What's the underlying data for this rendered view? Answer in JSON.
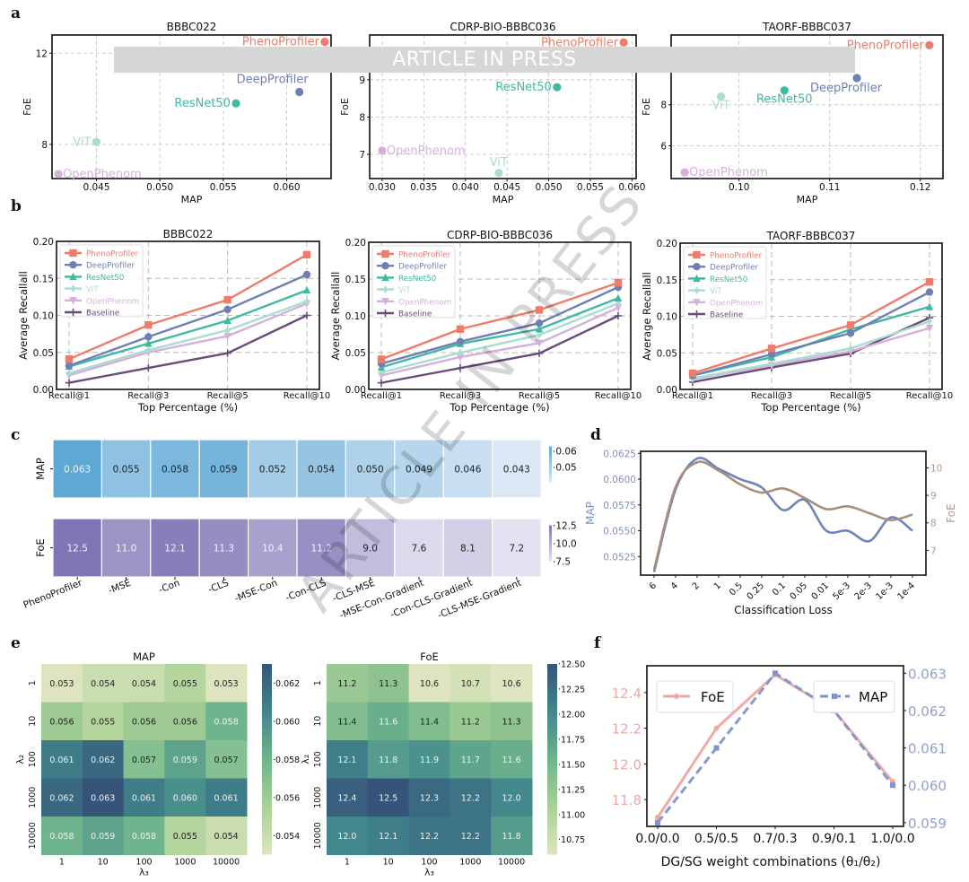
{
  "watermark": {
    "banner_text": "ARTICLE IN PRESS",
    "diagonal_text": "ARTICLE IN PRESS"
  },
  "panel_labels": [
    "a",
    "b",
    "c",
    "d",
    "e",
    "f"
  ],
  "chart_data": [
    {
      "id": "a1",
      "type": "scatter",
      "title": "BBBC022",
      "xlabel": "MAP",
      "ylabel": "FoE",
      "xlim": [
        0.0415,
        0.0635
      ],
      "ylim": [
        6.5,
        12.8
      ],
      "xticks": [
        0.045,
        0.05,
        0.055,
        0.06
      ],
      "xtick_labels": [
        "0.045",
        "0.050",
        "0.055",
        "0.060"
      ],
      "yticks": [
        8,
        12
      ],
      "ytick_labels": [
        "8",
        "12"
      ],
      "points": [
        {
          "name": "PhenoProfiler",
          "x": 0.063,
          "y": 12.5,
          "color": "#f07b6b"
        },
        {
          "name": "DeepProfiler",
          "x": 0.061,
          "y": 10.3,
          "color": "#6e7fb5"
        },
        {
          "name": "ResNet50",
          "x": 0.056,
          "y": 9.8,
          "color": "#3fb9a0"
        },
        {
          "name": "ViT",
          "x": 0.045,
          "y": 8.1,
          "color": "#a8ddd0"
        },
        {
          "name": "OpenPhenom",
          "x": 0.042,
          "y": 6.7,
          "color": "#d6b0db"
        }
      ]
    },
    {
      "id": "a2",
      "type": "scatter",
      "title": "CDRP-BIO-BBBC036",
      "xlabel": "MAP",
      "ylabel": "FoE",
      "xlim": [
        0.0285,
        0.0605
      ],
      "ylim": [
        6.35,
        10.2
      ],
      "xticks": [
        0.03,
        0.035,
        0.04,
        0.045,
        0.05,
        0.055,
        0.06
      ],
      "xtick_labels": [
        "0.030",
        "0.035",
        "0.040",
        "0.045",
        "0.050",
        "0.055",
        "0.060"
      ],
      "yticks": [
        7,
        8,
        9
      ],
      "ytick_labels": [
        "7",
        "8",
        "9"
      ],
      "points": [
        {
          "name": "PhenoProfiler",
          "x": 0.059,
          "y": 10.0,
          "color": "#f07b6b"
        },
        {
          "name": "DeepProfiler",
          "x": 0.055,
          "y": 9.7,
          "color": "#6e7fb5"
        },
        {
          "name": "ResNet50",
          "x": 0.051,
          "y": 8.8,
          "color": "#3fb9a0"
        },
        {
          "name": "ViT",
          "x": 0.044,
          "y": 6.5,
          "color": "#a8ddd0"
        },
        {
          "name": "OpenPhenom",
          "x": 0.03,
          "y": 7.1,
          "color": "#d6b0db"
        }
      ]
    },
    {
      "id": "a3",
      "type": "scatter",
      "title": "TAORF-BBBC037",
      "xlabel": "MAP",
      "ylabel": "FoE",
      "xlim": [
        0.0925,
        0.1225
      ],
      "ylim": [
        4.4,
        11.4
      ],
      "xticks": [
        0.1,
        0.11,
        0.12
      ],
      "xtick_labels": [
        "0.10",
        "0.11",
        "0.12"
      ],
      "yticks": [
        6,
        8
      ],
      "ytick_labels": [
        "6",
        "8"
      ],
      "points": [
        {
          "name": "PhenoProfiler",
          "x": 0.121,
          "y": 10.9,
          "color": "#f07b6b"
        },
        {
          "name": "DeepProfiler",
          "x": 0.113,
          "y": 9.3,
          "color": "#6e7fb5"
        },
        {
          "name": "ResNet50",
          "x": 0.105,
          "y": 8.7,
          "color": "#3fb9a0"
        },
        {
          "name": "ViT",
          "x": 0.098,
          "y": 8.4,
          "color": "#a8ddd0"
        },
        {
          "name": "OpenPhenom",
          "x": 0.094,
          "y": 4.7,
          "color": "#d6b0db"
        }
      ]
    },
    {
      "id": "b1",
      "type": "line",
      "title": "BBBC022",
      "xlabel": "Top Percentage (%)",
      "ylabel": "Average Recallall",
      "categories": [
        "Recall@1",
        "Recall@3",
        "Recall@5",
        "Recall@10"
      ],
      "ylim": [
        0,
        0.2
      ],
      "yticks": [
        0,
        0.05,
        0.1,
        0.15,
        0.2
      ],
      "ytick_labels": [
        "0.00",
        "0.05",
        "0.10",
        "0.15",
        "0.20"
      ],
      "legend": "top-left",
      "series": [
        {
          "name": "PhenoProfiler",
          "marker": "square",
          "color": "#f07b6b",
          "values": [
            0.041,
            0.087,
            0.121,
            0.182
          ]
        },
        {
          "name": "DeepProfiler",
          "marker": "circle",
          "color": "#6e7fb5",
          "values": [
            0.032,
            0.071,
            0.108,
            0.155
          ]
        },
        {
          "name": "ResNet50",
          "marker": "triangle",
          "color": "#3fb9a0",
          "values": [
            0.031,
            0.062,
            0.093,
            0.134
          ]
        },
        {
          "name": "ViT",
          "marker": "diamond",
          "color": "#a8ddd0",
          "values": [
            0.022,
            0.053,
            0.08,
            0.119
          ]
        },
        {
          "name": "OpenPhenom",
          "marker": "triangle-down",
          "color": "#d6b0db",
          "values": [
            0.019,
            0.05,
            0.072,
            0.116
          ]
        },
        {
          "name": "Baseline",
          "marker": "plus",
          "color": "#6a4c7a",
          "values": [
            0.009,
            0.029,
            0.049,
            0.1
          ]
        }
      ]
    },
    {
      "id": "b2",
      "type": "line",
      "title": "CDRP-BIO-BBBC036",
      "xlabel": "Top Percentage (%)",
      "ylabel": "Average Recallall",
      "categories": [
        "Recall@1",
        "Recall@3",
        "Recall@5",
        "Recall@10"
      ],
      "ylim": [
        0,
        0.2
      ],
      "yticks": [
        0,
        0.05,
        0.1,
        0.15,
        0.2
      ],
      "ytick_labels": [
        "0.00",
        "0.05",
        "0.10",
        "0.15",
        "0.20"
      ],
      "legend": "top-left",
      "series": [
        {
          "name": "PhenoProfiler",
          "marker": "square",
          "color": "#f07b6b",
          "values": [
            0.041,
            0.082,
            0.108,
            0.145
          ]
        },
        {
          "name": "DeepProfiler",
          "marker": "circle",
          "color": "#6e7fb5",
          "values": [
            0.035,
            0.065,
            0.09,
            0.139
          ]
        },
        {
          "name": "ResNet50",
          "marker": "triangle",
          "color": "#3fb9a0",
          "values": [
            0.03,
            0.062,
            0.082,
            0.124
          ]
        },
        {
          "name": "ViT",
          "marker": "diamond",
          "color": "#a8ddd0",
          "values": [
            0.023,
            0.05,
            0.074,
            0.117
          ]
        },
        {
          "name": "OpenPhenom",
          "marker": "triangle-down",
          "color": "#d6b0db",
          "values": [
            0.019,
            0.044,
            0.063,
            0.111
          ]
        },
        {
          "name": "Baseline",
          "marker": "plus",
          "color": "#6a4c7a",
          "values": [
            0.009,
            0.029,
            0.049,
            0.1
          ]
        }
      ]
    },
    {
      "id": "b3",
      "type": "line",
      "title": "TAORF-BBBC037",
      "xlabel": "Top Percentage (%)",
      "ylabel": "Average Recallall",
      "categories": [
        "Recall@1",
        "Recall@3",
        "Recall@5",
        "Recall@10"
      ],
      "ylim": [
        0,
        0.2
      ],
      "yticks": [
        0,
        0.05,
        0.1,
        0.15,
        0.2
      ],
      "ytick_labels": [
        "0.00",
        "0.05",
        "0.10",
        "0.15",
        "0.20"
      ],
      "legend": "top-left",
      "series": [
        {
          "name": "PhenoProfiler",
          "marker": "square",
          "color": "#f07b6b",
          "values": [
            0.022,
            0.056,
            0.088,
            0.147
          ]
        },
        {
          "name": "DeepProfiler",
          "marker": "circle",
          "color": "#6e7fb5",
          "values": [
            0.019,
            0.048,
            0.077,
            0.133
          ]
        },
        {
          "name": "ResNet50",
          "marker": "triangle",
          "color": "#3fb9a0",
          "values": [
            0.019,
            0.044,
            0.082,
            0.113
          ]
        },
        {
          "name": "ViT",
          "marker": "diamond",
          "color": "#a8ddd0",
          "values": [
            0.015,
            0.035,
            0.056,
            0.093
          ]
        },
        {
          "name": "OpenPhenom",
          "marker": "triangle-down",
          "color": "#d6b0db",
          "values": [
            0.014,
            0.033,
            0.052,
            0.084
          ]
        },
        {
          "name": "Baseline",
          "marker": "plus",
          "color": "#6a4c7a",
          "values": [
            0.01,
            0.03,
            0.049,
            0.098
          ]
        }
      ]
    },
    {
      "id": "c",
      "type": "heatmap",
      "categories": [
        "PhenoProfiler",
        "-MSE",
        "-Con",
        "-CLS",
        "-MSE-Con",
        "-Con-CLS",
        "-CLS-MSE",
        "-MSE-Con-Gradient",
        "-Con-CLS-Gradient",
        "-CLS-MSE-Gradient"
      ],
      "rows": [
        {
          "name": "MAP",
          "values": [
            0.063,
            0.055,
            0.058,
            0.059,
            0.052,
            0.054,
            0.05,
            0.049,
            0.046,
            0.043
          ],
          "labels": [
            "0.063",
            "0.055",
            "0.058",
            "0.059",
            "0.052",
            "0.054",
            "0.050",
            "0.049",
            "0.046",
            "0.043"
          ],
          "colorbar_ticks": [
            "0.06",
            "0.05"
          ],
          "range": [
            0.043,
            0.063
          ],
          "cmap": [
            "#dbe9f6",
            "#5da8d4"
          ]
        },
        {
          "name": "FoE",
          "values": [
            12.5,
            11.0,
            12.1,
            11.3,
            10.4,
            11.2,
            9.0,
            7.6,
            8.1,
            7.2
          ],
          "labels": [
            "12.5",
            "11.0",
            "12.1",
            "11.3",
            "10.4",
            "11.2",
            "9.0",
            "7.6",
            "8.1",
            "7.2"
          ],
          "colorbar_ticks": [
            "12.5",
            "10.0",
            "7.5"
          ],
          "range": [
            7.2,
            12.5
          ],
          "cmap": [
            "#e3e2f0",
            "#7f76b6"
          ]
        }
      ]
    },
    {
      "id": "d",
      "type": "line",
      "xlabel": "Classification Loss",
      "ylabel_left": "MAP",
      "ylabel_right": "FoE",
      "categories": [
        "6",
        "4",
        "2",
        "1",
        "0.5",
        "0.25",
        "0.1",
        "0.05",
        "0.01",
        "5e-3",
        "2e-3",
        "1e-3",
        "1e-4"
      ],
      "ylim_left": [
        0.0507,
        0.0627
      ],
      "ylim_right": [
        6.1,
        10.6
      ],
      "yticks_left": [
        "0.0525",
        "0.0550",
        "0.0575",
        "0.0600",
        "0.0625"
      ],
      "yticks_right": [
        "7",
        "8",
        "9",
        "10"
      ],
      "series": [
        {
          "name": "MAP",
          "axis": "left",
          "color": "#6e84bd",
          "values": [
            0.051,
            0.059,
            0.062,
            0.061,
            0.06,
            0.0592,
            0.057,
            0.058,
            0.055,
            0.055,
            0.054,
            0.0563,
            0.055
          ]
        },
        {
          "name": "FoE",
          "axis": "right",
          "color": "#a88e7c",
          "values": [
            6.3,
            9.3,
            10.2,
            9.9,
            9.4,
            9.1,
            9.25,
            8.9,
            8.5,
            8.6,
            8.35,
            8.1,
            8.3
          ]
        }
      ]
    },
    {
      "id": "e1",
      "type": "heatmap",
      "title": "MAP",
      "xlabel": "λ₃",
      "ylabel": "λ₂",
      "x": [
        "1",
        "10",
        "100",
        "1000",
        "10000"
      ],
      "y": [
        "1",
        "10",
        "100",
        "1000",
        "10000"
      ],
      "values": [
        [
          0.053,
          0.054,
          0.054,
          0.055,
          0.053
        ],
        [
          0.056,
          0.055,
          0.056,
          0.056,
          0.058
        ],
        [
          0.061,
          0.062,
          0.057,
          0.059,
          0.057
        ],
        [
          0.062,
          0.063,
          0.061,
          0.06,
          0.061
        ],
        [
          0.058,
          0.059,
          0.058,
          0.055,
          0.054
        ]
      ],
      "labels": [
        [
          "0.053",
          "0.054",
          "0.054",
          "0.055",
          "0.053"
        ],
        [
          "0.056",
          "0.055",
          "0.056",
          "0.056",
          "0.058"
        ],
        [
          "0.061",
          "0.062",
          "0.057",
          "0.059",
          "0.057"
        ],
        [
          "0.062",
          "0.063",
          "0.061",
          "0.060",
          "0.061"
        ],
        [
          "0.058",
          "0.059",
          "0.058",
          "0.055",
          "0.054"
        ]
      ],
      "range": [
        0.053,
        0.063
      ],
      "colorbar_ticks": [
        "0.062",
        "0.060",
        "0.058",
        "0.056",
        "0.054"
      ],
      "colorbar_values": [
        0.062,
        0.06,
        0.058,
        0.056,
        0.054
      ]
    },
    {
      "id": "e2",
      "type": "heatmap",
      "title": "FoE",
      "xlabel": "λ₃",
      "ylabel": "λ₂",
      "x": [
        "1",
        "10",
        "100",
        "1000",
        "10000"
      ],
      "y": [
        "1",
        "10",
        "100",
        "1000",
        "10000"
      ],
      "values": [
        [
          11.2,
          11.3,
          10.6,
          10.7,
          10.6
        ],
        [
          11.4,
          11.6,
          11.4,
          11.2,
          11.3
        ],
        [
          12.1,
          11.8,
          11.9,
          11.7,
          11.6
        ],
        [
          12.4,
          12.5,
          12.3,
          12.2,
          12.0
        ],
        [
          12.0,
          12.1,
          12.2,
          12.2,
          11.8
        ]
      ],
      "labels": [
        [
          "11.2",
          "11.3",
          "10.6",
          "10.7",
          "10.6"
        ],
        [
          "11.4",
          "11.6",
          "11.4",
          "11.2",
          "11.3"
        ],
        [
          "12.1",
          "11.8",
          "11.9",
          "11.7",
          "11.6"
        ],
        [
          "12.4",
          "12.5",
          "12.3",
          "12.2",
          "12.0"
        ],
        [
          "12.0",
          "12.1",
          "12.2",
          "12.2",
          "11.8"
        ]
      ],
      "range": [
        10.6,
        12.5
      ],
      "colorbar_ticks": [
        "12.50",
        "12.25",
        "12.00",
        "11.75",
        "11.50",
        "11.25",
        "11.00",
        "10.75"
      ],
      "colorbar_values": [
        12.5,
        12.25,
        12.0,
        11.75,
        11.5,
        11.25,
        11.0,
        10.75
      ]
    },
    {
      "id": "f",
      "type": "line",
      "xlabel": "DG/SG weight combinations (θ₁/θ₂)",
      "categories": [
        "0.0/0.0",
        "0.5/0.5",
        "0.7/0.3",
        "0.9/0.1",
        "1.0/0.0"
      ],
      "ylim_left": [
        11.65,
        12.55
      ],
      "ylim_right": [
        0.0589,
        0.0632
      ],
      "yticks_left": [
        "11.8",
        "12.0",
        "12.2",
        "12.4"
      ],
      "yticks_left_values": [
        11.8,
        12.0,
        12.2,
        12.4
      ],
      "yticks_right": [
        "0.059",
        "0.060",
        "0.061",
        "0.062",
        "0.063"
      ],
      "yticks_right_values": [
        0.059,
        0.06,
        0.061,
        0.062,
        0.063
      ],
      "series": [
        {
          "name": "FoE",
          "axis": "left",
          "color": "#eea8a2",
          "style": "solid",
          "values": [
            11.7,
            12.2,
            12.5,
            12.3,
            11.9
          ]
        },
        {
          "name": "MAP",
          "axis": "right",
          "color": "#7f93cf",
          "style": "dashed",
          "values": [
            0.059,
            0.061,
            0.063,
            0.062,
            0.06
          ]
        }
      ],
      "legend": [
        "top-left: FoE",
        "top-right: MAP"
      ]
    }
  ]
}
